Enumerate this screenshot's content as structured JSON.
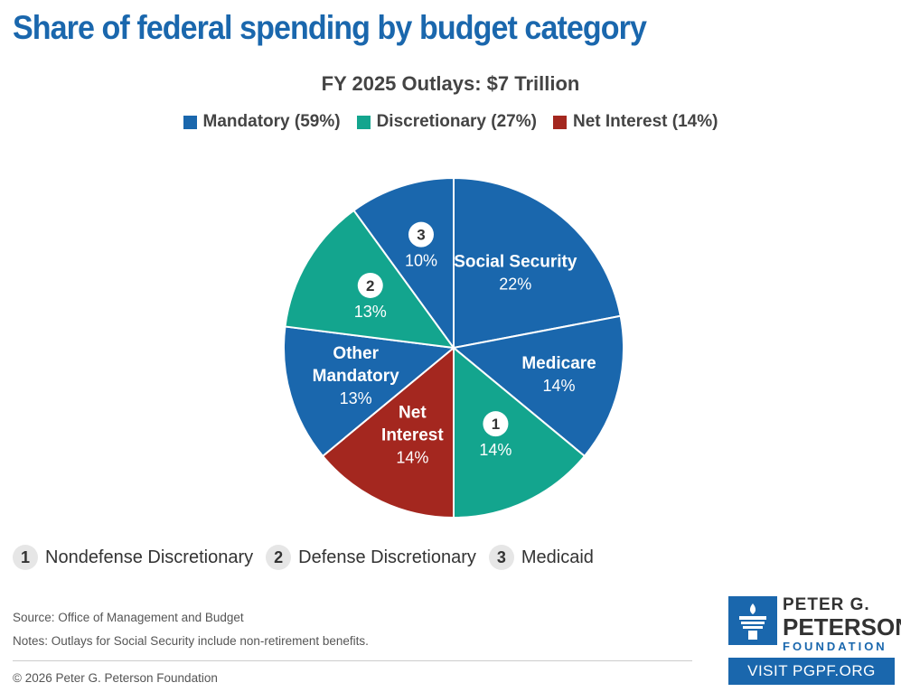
{
  "header": {
    "title": "Share of federal spending by budget category"
  },
  "chart_data": {
    "type": "pie",
    "title": "FY 2025 Outlays: $7 Trillion",
    "legend": [
      {
        "label": "Mandatory (59%)",
        "color": "#1a67ad"
      },
      {
        "label": "Discretionary (27%)",
        "color": "#13a58e"
      },
      {
        "label": "Net Interest (14%)",
        "color": "#a4271f"
      }
    ],
    "legend_position": "top",
    "slices": [
      {
        "label": "Social Security",
        "value": 22,
        "display": "22%",
        "group": "Mandatory",
        "color": "#1a67ad"
      },
      {
        "label": "Medicare",
        "value": 14,
        "display": "14%",
        "group": "Mandatory",
        "color": "#1a67ad"
      },
      {
        "label": "",
        "badge": "1",
        "value": 14,
        "display": "14%",
        "group": "Discretionary",
        "color": "#13a58e"
      },
      {
        "label": "Net Interest",
        "value": 14,
        "display": "14%",
        "group": "Net Interest",
        "color": "#a4271f"
      },
      {
        "label": "Other Mandatory",
        "value": 13,
        "display": "13%",
        "group": "Mandatory",
        "color": "#1a67ad"
      },
      {
        "label": "",
        "badge": "2",
        "value": 13,
        "display": "13%",
        "group": "Discretionary",
        "color": "#13a58e"
      },
      {
        "label": "",
        "badge": "3",
        "value": 10,
        "display": "10%",
        "group": "Mandatory",
        "color": "#1a67ad"
      }
    ]
  },
  "key": [
    {
      "num": "1",
      "label": "Nondefense Discretionary"
    },
    {
      "num": "2",
      "label": "Defense Discretionary"
    },
    {
      "num": "3",
      "label": "Medicaid"
    }
  ],
  "footer": {
    "source": "Source: Office of Management and Budget",
    "notes": "Notes: Outlays for Social Security include non-retirement benefits.",
    "copyright": "© 2026 Peter G. Peterson Foundation",
    "logo_line1": "PETER G.",
    "logo_line2": "PETERSON",
    "logo_line3": "FOUNDATION",
    "visit_label": "VISIT PGPF.ORG"
  }
}
